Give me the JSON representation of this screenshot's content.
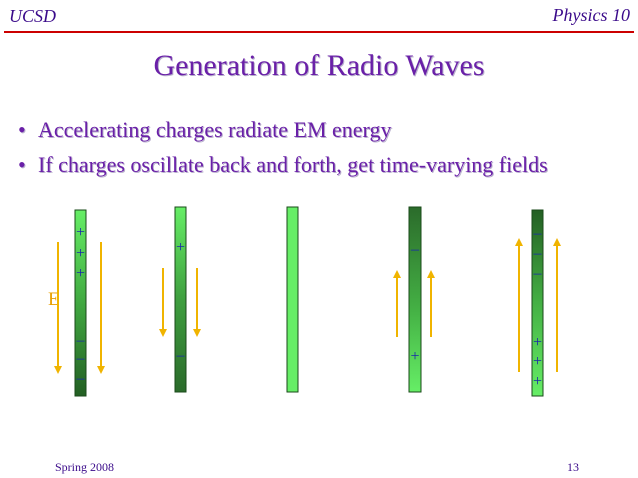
{
  "header": {
    "left": "UCSD",
    "right": "Physics 10"
  },
  "title": "Generation of Radio Waves",
  "bullets": [
    "Accelerating charges radiate EM energy",
    "If charges oscillate back and forth, get time-varying fields"
  ],
  "figure": {
    "field_label": "E",
    "charge_plus": "+",
    "charge_minus": "–"
  },
  "footer": {
    "date": "Spring 2008",
    "page": "13"
  },
  "colors": {
    "title": "#6a20a8",
    "rule": "#cc0000",
    "arrow": "#f0b400",
    "rod_light": "#66ee66",
    "rod_dark": "#226622",
    "charge_sign": "#1a2aa8"
  }
}
